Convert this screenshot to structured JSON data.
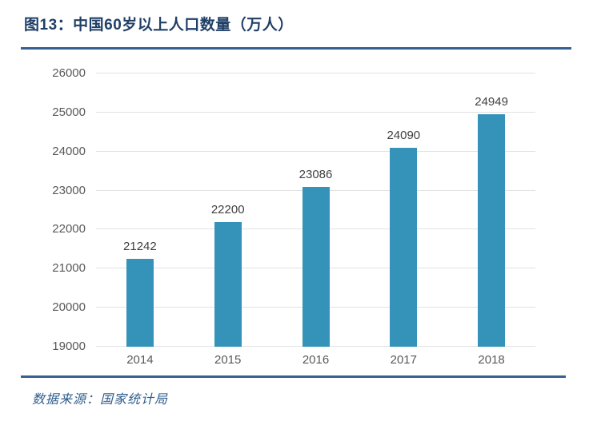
{
  "figure": {
    "title": "图13：中国60岁以上人口数量（万人）",
    "source_note": "数据来源：国家统计局"
  },
  "colors": {
    "title": "#1f3f67",
    "rule": "#376092",
    "source_text": "#2f5d8c",
    "bar": "#3592b8",
    "gridline": "#e2e2e2",
    "axis_label": "#595959",
    "value_label": "#404040"
  },
  "chart_data": {
    "type": "bar",
    "title": "中国60岁以上人口数量（万人）",
    "categories": [
      "2014",
      "2015",
      "2016",
      "2017",
      "2018"
    ],
    "values": [
      21242,
      22200,
      23086,
      24090,
      24949
    ],
    "data_labels": [
      21242,
      22200,
      23086,
      24090,
      24949
    ],
    "xlabel": "",
    "ylabel": "",
    "ylim": [
      19000,
      26000
    ],
    "yticks": [
      19000,
      20000,
      21000,
      22000,
      23000,
      24000,
      25000,
      26000
    ],
    "grid": "horizontal",
    "legend": "none"
  }
}
